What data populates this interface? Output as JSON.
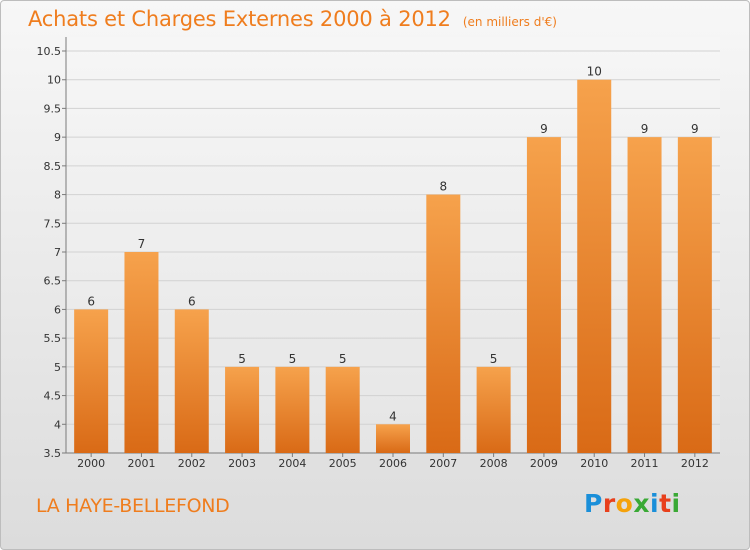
{
  "header": {
    "title": "Achats et Charges Externes 2000 à 2012",
    "unit": "(en milliers d'€)"
  },
  "footer": {
    "commune": "LA HAYE-BELLEFOND",
    "logo_text": "Proxiti",
    "logo_colors": [
      "#1a8fd9",
      "#e8401c",
      "#f5a20a",
      "#3aa935",
      "#1a8fd9",
      "#e8401c",
      "#3aa935"
    ]
  },
  "colors": {
    "accent": "#ef7d1e",
    "bar_top": "#f6a24c",
    "bar_bottom": "#d96a16"
  },
  "chart_data": {
    "type": "bar",
    "categories": [
      "2000",
      "2001",
      "2002",
      "2003",
      "2004",
      "2005",
      "2006",
      "2007",
      "2008",
      "2009",
      "2010",
      "2011",
      "2012"
    ],
    "values": [
      6,
      7,
      6,
      5,
      5,
      5,
      4,
      8,
      5,
      9,
      10,
      9,
      9
    ],
    "data_labels": [
      "6",
      "7",
      "6",
      "5",
      "5",
      "5",
      "4",
      "8",
      "5",
      "9",
      "10",
      "9",
      "9"
    ],
    "yticks": [
      "3.5",
      "4",
      "4.5",
      "5",
      "5.5",
      "6",
      "6.5",
      "7",
      "7.5",
      "8",
      "8.5",
      "9",
      "9.5",
      "10",
      "10.5"
    ],
    "ylim": [
      3.5,
      10.5
    ],
    "grid": true,
    "title": "Achats et Charges Externes 2000 à 2012",
    "xlabel": "",
    "ylabel": ""
  }
}
